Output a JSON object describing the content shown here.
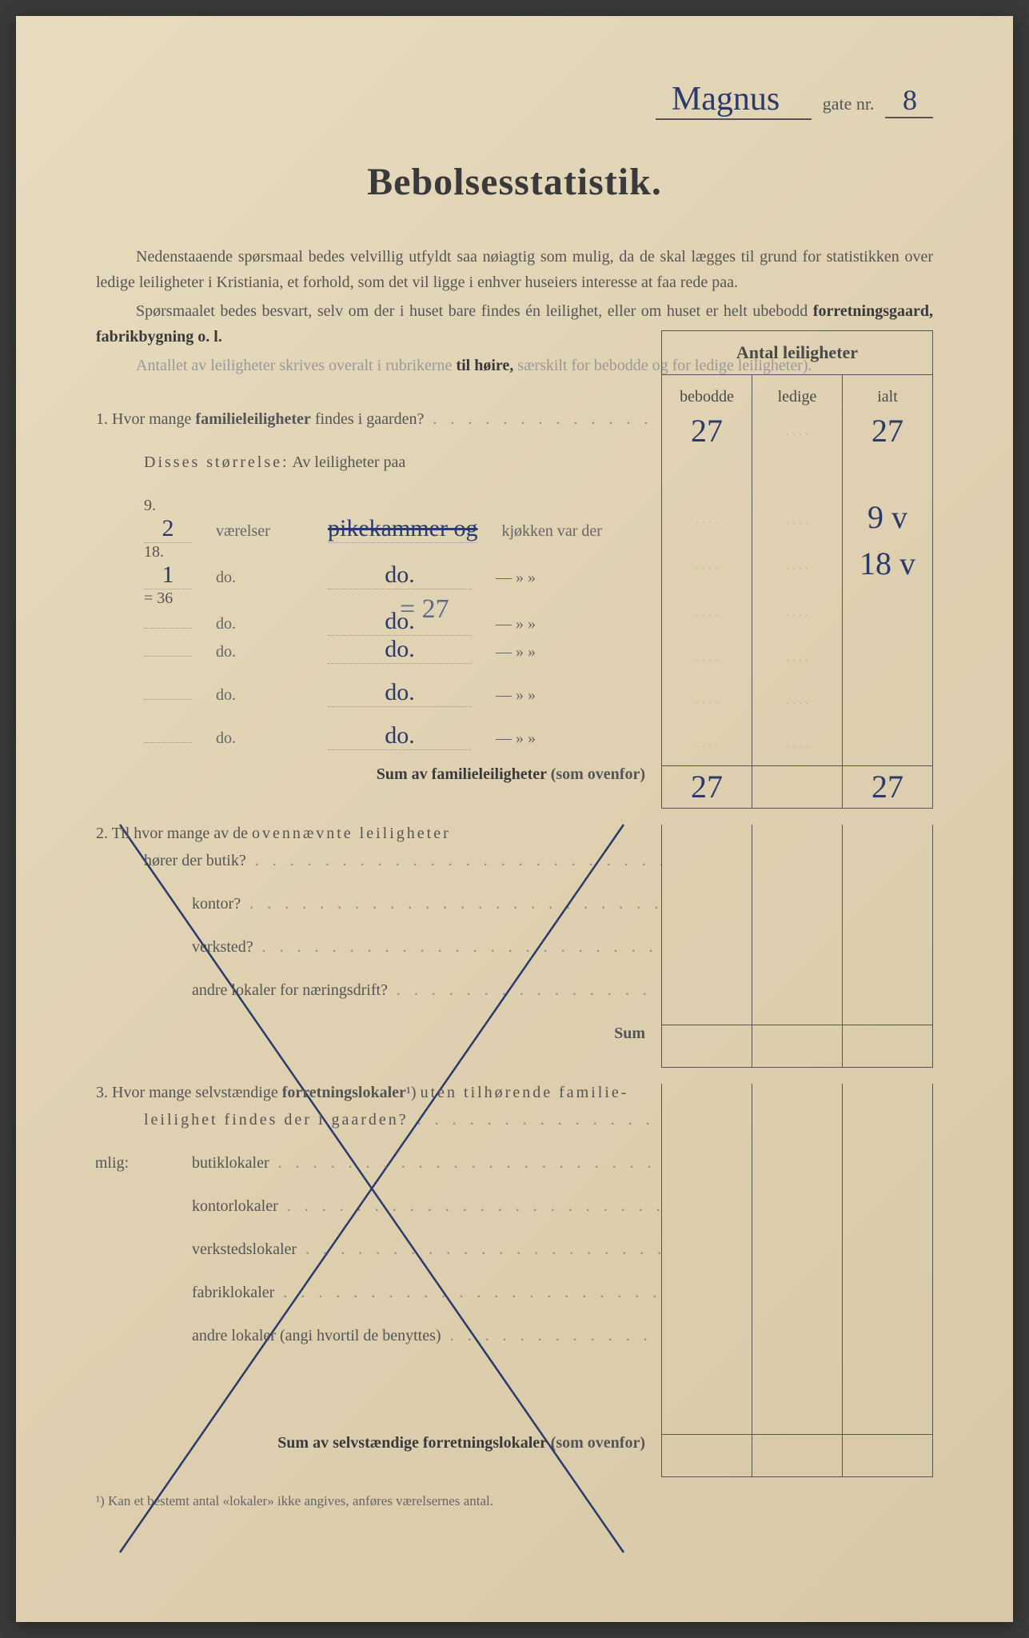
{
  "header": {
    "street_name": "Magnus",
    "gate_label": "gate nr.",
    "gate_number": "8"
  },
  "title": "Bebolsesstatistik.",
  "intro": {
    "p1": "Nedenstaaende spørsmaal bedes velvillig utfyldt saa nøiagtig som mulig, da de skal lægges til grund for statistikken over ledige leiligheter i Kristiania, et forhold, som det vil ligge i enhver huseiers interesse at faa rede paa.",
    "p2_a": "Spørsmaalet bedes besvart, selv om der i huset bare findes én leilighet, eller om huset er helt ubebodd ",
    "p2_b": "forretningsgaard, fabrikbygning o. l.",
    "p3_a": "Antallet av leiligheter skrives overalt i rubrikerne ",
    "p3_b": "til høire,",
    "p3_c": " særskilt for bebodde og for ledige leiligheter)."
  },
  "table_header": {
    "title": "Antal leiligheter",
    "col1": "bebodde",
    "col2": "ledige",
    "col3": "ialt"
  },
  "q1": {
    "text_a": "1.  Hvor mange ",
    "text_b": "familieleiligheter",
    "text_c": " findes i gaarden?",
    "bebodde": "27",
    "ialt": "27",
    "size_label_a": "Disses ",
    "size_label_b": "størrelse:",
    "size_label_c": "  Av leiligheter paa",
    "rows": [
      {
        "margin": "9.",
        "rooms": "2",
        "w1": "værelser",
        "w2": "pikekammer og",
        "w2_strike": true,
        "w3": "kjøkken var der",
        "ialt": "9 v"
      },
      {
        "margin": "18.",
        "rooms": "1",
        "w1": "do.",
        "w2": "do.",
        "w3": "—     »     »",
        "ialt": "18 v"
      },
      {
        "margin": "= 36",
        "rooms": "",
        "w1": "do.",
        "w2": "do.",
        "w3": "—     »     »",
        "ialt": "",
        "annotation": "= 27"
      },
      {
        "margin": "",
        "rooms": "",
        "w1": "do.",
        "w2": "do.",
        "w3": "—     »     »",
        "ialt": ""
      },
      {
        "margin": "",
        "rooms": "",
        "w1": "do.",
        "w2": "do.",
        "w3": "—     »     »",
        "ialt": ""
      },
      {
        "margin": "",
        "rooms": "",
        "w1": "do.",
        "w2": "do.",
        "w3": "—     »     »",
        "ialt": ""
      }
    ],
    "sum_label": "Sum av familieleiligheter",
    "sum_note": " (som ovenfor)",
    "sum_bebodde": "27",
    "sum_ialt": "27"
  },
  "q2": {
    "text_a": "2.  Til hvor mange av de ",
    "text_b": "ovennævnte leiligheter",
    "line2": "hører der butik?",
    "line3": "kontor?",
    "line4": "verksted?",
    "line5": "andre lokaler for næringsdrift?",
    "sum": "Sum"
  },
  "q3": {
    "text_a": "3.  Hvor mange selvstændige ",
    "text_b": "forretningslokaler",
    "text_c": "¹) ",
    "text_d": "uten tilhørende familie-",
    "line2": "leilighet findes der i gaarden?",
    "nemlig": "nemlig:",
    "items": [
      "butiklokaler",
      "kontorlokaler",
      "verkstedslokaler",
      "fabriklokaler",
      "andre lokaler (angi hvortil de benyttes)"
    ],
    "sum_label": "Sum av selvstændige forretningslokaler",
    "sum_note": " (som ovenfor)"
  },
  "footnote": "¹)  Kan et bestemt antal «lokaler» ikke angives, anføres værelsernes antal.",
  "colors": {
    "paper": "#e8dcc0",
    "ink_print": "#4a4a4a",
    "ink_handwritten": "#2a3a6a"
  }
}
